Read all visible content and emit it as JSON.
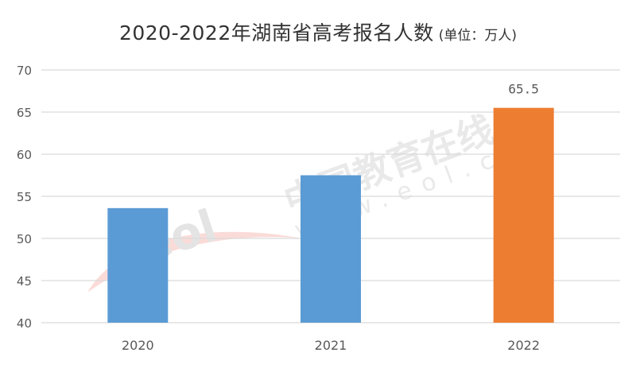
{
  "title": "2020-2022年湖南省高考报名人数",
  "unit_note": "(单位：万人)",
  "watermark": {
    "logo_text": "eol",
    "site_name": "中国教育在线",
    "site_url": "www.eol.cn"
  },
  "colors": {
    "bar_default": "#5b9bd5",
    "bar_highlight": "#ed7d31",
    "grid": "#d9d9d9",
    "text": "#595959"
  },
  "chart_data": {
    "type": "bar",
    "categories": [
      "2020",
      "2021",
      "2022"
    ],
    "values": [
      53.6,
      57.5,
      65.5
    ],
    "data_labels": [
      null,
      null,
      "65.5"
    ],
    "highlight_index": 2,
    "ylim": [
      40,
      70
    ],
    "yticks": [
      40,
      45,
      50,
      55,
      60,
      65,
      70
    ],
    "grid": true,
    "legend": "none",
    "xlabel": "",
    "ylabel": ""
  }
}
